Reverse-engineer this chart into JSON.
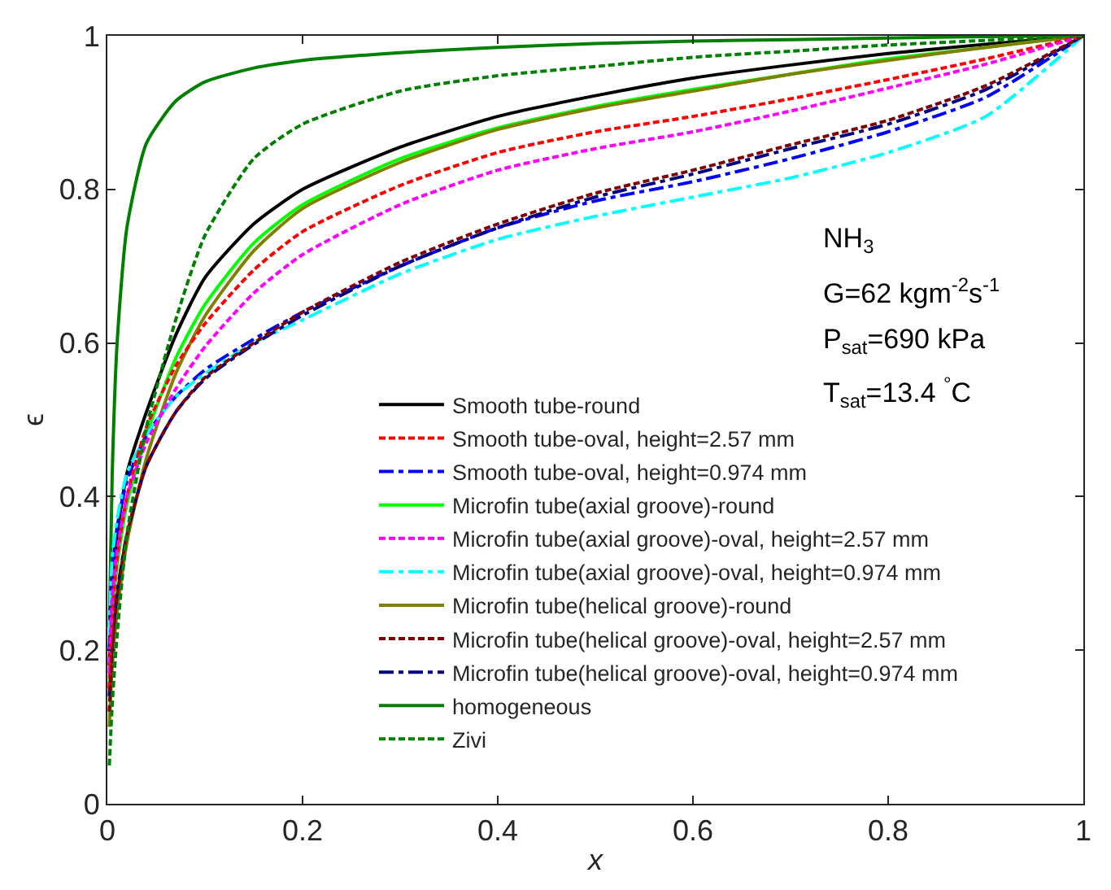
{
  "chart_data": {
    "type": "line",
    "xlabel": "x",
    "ylabel": "ϵ",
    "x": [
      0.002,
      0.005,
      0.01,
      0.02,
      0.04,
      0.07,
      0.1,
      0.15,
      0.2,
      0.3,
      0.4,
      0.5,
      0.6,
      0.7,
      0.8,
      0.9,
      1
    ],
    "xlim": [
      0,
      1
    ],
    "ylim": [
      0,
      1
    ],
    "xticks": [
      0,
      0.2,
      0.4,
      0.6,
      0.8,
      1
    ],
    "yticks": [
      0,
      0.2,
      0.4,
      0.6,
      0.8,
      1
    ],
    "grid": false,
    "legend": "bottom right",
    "marker": "none",
    "series": [
      {
        "name": "Smooth tube-round",
        "color": "#000000",
        "line_style": "solid",
        "values": [
          0.18,
          0.28,
          0.35,
          0.43,
          0.51,
          0.61,
          0.685,
          0.755,
          0.8,
          0.855,
          0.895,
          0.922,
          0.945,
          0.962,
          0.977,
          0.989,
          1
        ]
      },
      {
        "name": "Smooth tube-oval, height=2.57 mm",
        "color": "#ff0000",
        "line_style": "dashed",
        "values": [
          0.15,
          0.25,
          0.32,
          0.4,
          0.49,
          0.57,
          0.625,
          0.695,
          0.745,
          0.805,
          0.848,
          0.875,
          0.895,
          0.918,
          0.943,
          0.97,
          1
        ]
      },
      {
        "name": "Smooth tube-oval, height=0.974 mm",
        "color": "#0000ff",
        "line_style": "dashdot",
        "values": [
          0.2,
          0.3,
          0.36,
          0.42,
          0.48,
          0.53,
          0.565,
          0.605,
          0.64,
          0.7,
          0.75,
          0.785,
          0.81,
          0.84,
          0.875,
          0.92,
          1
        ]
      },
      {
        "name": "Microfin tube(axial groove)-round",
        "color": "#00ff00",
        "line_style": "solid",
        "values": [
          0.15,
          0.24,
          0.31,
          0.39,
          0.48,
          0.58,
          0.65,
          0.73,
          0.78,
          0.84,
          0.88,
          0.908,
          0.93,
          0.95,
          0.97,
          0.985,
          1
        ]
      },
      {
        "name": "Microfin tube(axial groove)-oval, height=2.57 mm",
        "color": "#ff00ff",
        "line_style": "dashed",
        "values": [
          0.17,
          0.27,
          0.33,
          0.4,
          0.47,
          0.54,
          0.595,
          0.665,
          0.715,
          0.78,
          0.825,
          0.853,
          0.875,
          0.902,
          0.932,
          0.963,
          1
        ]
      },
      {
        "name": "Microfin tube(axial groove)-oval, height=0.974 mm",
        "color": "#00ffff",
        "line_style": "dashdot",
        "values": [
          0.22,
          0.32,
          0.37,
          0.43,
          0.48,
          0.53,
          0.56,
          0.6,
          0.63,
          0.69,
          0.735,
          0.765,
          0.79,
          0.815,
          0.848,
          0.895,
          1
        ]
      },
      {
        "name": "Microfin tube(helical groove)-round",
        "color": "#808000",
        "line_style": "solid",
        "values": [
          0.1,
          0.18,
          0.25,
          0.34,
          0.45,
          0.56,
          0.635,
          0.72,
          0.775,
          0.835,
          0.878,
          0.906,
          0.928,
          0.95,
          0.968,
          0.985,
          1
        ]
      },
      {
        "name": "Microfin tube(helical groove)-oval, height=2.57 mm",
        "color": "#800000",
        "line_style": "dashed",
        "values": [
          0.12,
          0.2,
          0.27,
          0.35,
          0.44,
          0.51,
          0.555,
          0.6,
          0.64,
          0.705,
          0.755,
          0.795,
          0.825,
          0.858,
          0.89,
          0.935,
          1
        ]
      },
      {
        "name": "Microfin tube(helical groove)-oval, height=0.974 mm",
        "color": "#000080",
        "line_style": "dashdot",
        "values": [
          0.14,
          0.21,
          0.275,
          0.35,
          0.44,
          0.51,
          0.553,
          0.598,
          0.636,
          0.7,
          0.75,
          0.79,
          0.82,
          0.853,
          0.885,
          0.93,
          1
        ]
      },
      {
        "name": "homogeneous",
        "color": "#008000",
        "line_style": "solid",
        "values": [
          0.23,
          0.43,
          0.6,
          0.75,
          0.86,
          0.915,
          0.94,
          0.958,
          0.968,
          0.978,
          0.985,
          0.99,
          0.993,
          0.995,
          0.997,
          0.999,
          1
        ]
      },
      {
        "name": "Zivi",
        "color": "#008000",
        "line_style": "dashed",
        "values": [
          0.05,
          0.13,
          0.22,
          0.35,
          0.49,
          0.63,
          0.74,
          0.84,
          0.885,
          0.928,
          0.948,
          0.96,
          0.972,
          0.98,
          0.988,
          0.994,
          1
        ]
      }
    ],
    "annotations": [
      "NH$_{3}$",
      "G=62 kgm$^{-2}$s$^{-1}$",
      "P$_{sat}$=690 kPa",
      "T$_{sat}$=13.4 $^{°}$C"
    ]
  }
}
